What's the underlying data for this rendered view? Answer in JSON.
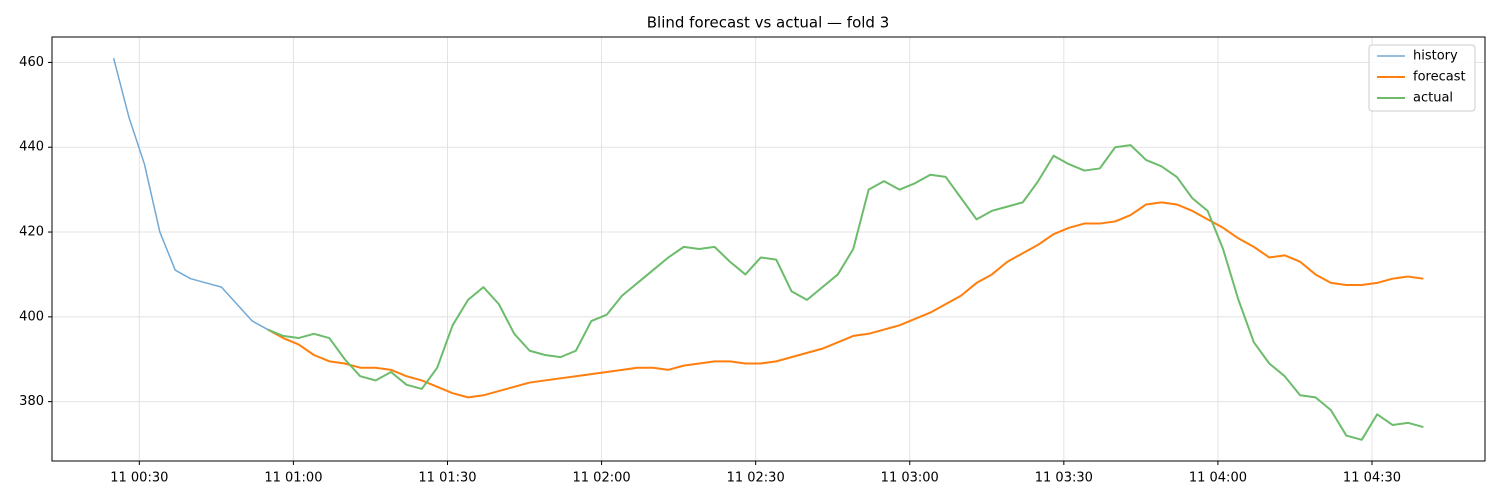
{
  "chart_data": {
    "type": "line",
    "title": "Blind forecast vs actual — fold 3",
    "x": [
      "11 00:25",
      "11 00:28",
      "11 00:31",
      "11 00:34",
      "11 00:37",
      "11 00:40",
      "11 00:43",
      "11 00:46",
      "11 00:49",
      "11 00:52",
      "11 00:55",
      "11 00:58",
      "11 01:01",
      "11 01:04",
      "11 01:07",
      "11 01:10",
      "11 01:13",
      "11 01:16",
      "11 01:19",
      "11 01:22",
      "11 01:25",
      "11 01:28",
      "11 01:31",
      "11 01:34",
      "11 01:37",
      "11 01:40",
      "11 01:43",
      "11 01:46",
      "11 01:49",
      "11 01:52",
      "11 01:55",
      "11 01:58",
      "11 02:01",
      "11 02:04",
      "11 02:07",
      "11 02:10",
      "11 02:13",
      "11 02:16",
      "11 02:19",
      "11 02:22",
      "11 02:25",
      "11 02:28",
      "11 02:31",
      "11 02:34",
      "11 02:37",
      "11 02:40",
      "11 02:43",
      "11 02:46",
      "11 02:49",
      "11 02:52",
      "11 02:55",
      "11 02:58",
      "11 03:01",
      "11 03:04",
      "11 03:07",
      "11 03:10",
      "11 03:13",
      "11 03:16",
      "11 03:19",
      "11 03:22",
      "11 03:25",
      "11 03:28",
      "11 03:31",
      "11 03:34",
      "11 03:37",
      "11 03:40",
      "11 03:43",
      "11 03:46",
      "11 03:49",
      "11 03:52",
      "11 03:55",
      "11 03:58",
      "11 04:01",
      "11 04:04",
      "11 04:07",
      "11 04:10",
      "11 04:13",
      "11 04:16",
      "11 04:19",
      "11 04:22",
      "11 04:25",
      "11 04:28",
      "11 04:31",
      "11 04:34",
      "11 04:37",
      "11 04:40"
    ],
    "series": [
      {
        "name": "history",
        "color": "#72a9d5",
        "width": 1.5,
        "values": [
          461,
          447,
          436,
          420,
          411,
          409,
          408,
          407,
          403,
          399,
          397,
          null,
          null,
          null,
          null,
          null,
          null,
          null,
          null,
          null,
          null,
          null,
          null,
          null,
          null,
          null,
          null,
          null,
          null,
          null,
          null,
          null,
          null,
          null,
          null,
          null,
          null,
          null,
          null,
          null,
          null,
          null,
          null,
          null,
          null,
          null,
          null,
          null,
          null,
          null,
          null,
          null,
          null,
          null,
          null,
          null,
          null,
          null,
          null,
          null,
          null,
          null,
          null,
          null,
          null,
          null,
          null,
          null,
          null,
          null,
          null,
          null,
          null,
          null,
          null,
          null,
          null,
          null,
          null,
          null,
          null,
          null,
          null,
          null,
          null,
          null
        ]
      },
      {
        "name": "forecast",
        "color": "#ff7f0e",
        "width": 2,
        "values": [
          null,
          null,
          null,
          null,
          null,
          null,
          null,
          null,
          null,
          null,
          397,
          395,
          393.5,
          391,
          389.5,
          389,
          388,
          388,
          387.5,
          386,
          385,
          383.5,
          382,
          381,
          381.5,
          382.5,
          383.5,
          384.5,
          385,
          385.5,
          386,
          386.5,
          387,
          387.5,
          388,
          388,
          387.5,
          388.5,
          389,
          389.5,
          389.5,
          389,
          389,
          389.5,
          390.5,
          391.5,
          392.5,
          394,
          395.5,
          396,
          397,
          398,
          399.5,
          401,
          403,
          405,
          408,
          410,
          413,
          415,
          417,
          419.5,
          421,
          422,
          422,
          422.5,
          424,
          426.5,
          427,
          426.5,
          425,
          423,
          421,
          418.5,
          416.5,
          414,
          414.5,
          413,
          410,
          408,
          407.5,
          407.5,
          408,
          409,
          409.5,
          409
        ]
      },
      {
        "name": "actual",
        "color": "#6cbc6c",
        "width": 2,
        "values": [
          null,
          null,
          null,
          null,
          null,
          null,
          null,
          null,
          null,
          null,
          397,
          395.5,
          395,
          396,
          395,
          390,
          386,
          385,
          387,
          384,
          383,
          388,
          398,
          404,
          407,
          403,
          396,
          392,
          391,
          390.5,
          392,
          399,
          400.5,
          405,
          408,
          411,
          414,
          416.5,
          416,
          416.5,
          413,
          410,
          414,
          413.5,
          406,
          404,
          407,
          410,
          416,
          430,
          432,
          430,
          431.5,
          433.5,
          433,
          428,
          423,
          425,
          426,
          427,
          432,
          438,
          436,
          434.5,
          435,
          440,
          440.5,
          437,
          435.5,
          433,
          428,
          425,
          416,
          404,
          394,
          389,
          386,
          381.5,
          381,
          378,
          372,
          371,
          377,
          374.5,
          375,
          374
        ]
      }
    ],
    "xlim": [
      "11 00:13",
      "11 04:52"
    ],
    "xticks": [
      "11 00:30",
      "11 01:00",
      "11 01:30",
      "11 02:00",
      "11 02:30",
      "11 03:00",
      "11 03:30",
      "11 04:00",
      "11 04:30"
    ],
    "ylim": [
      366,
      466
    ],
    "yticks": [
      380,
      400,
      420,
      440,
      460
    ],
    "grid": true,
    "legend": "upper-right"
  }
}
